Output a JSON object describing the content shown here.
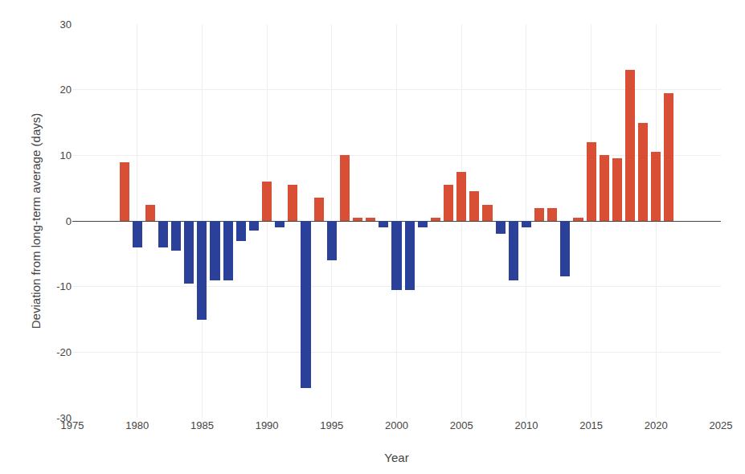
{
  "chart_data": {
    "type": "bar",
    "xlabel": "Year",
    "ylabel": "Deviation from long-term average (days)",
    "x": [
      1979,
      1980,
      1981,
      1982,
      1983,
      1984,
      1985,
      1986,
      1987,
      1988,
      1989,
      1990,
      1991,
      1992,
      1993,
      1994,
      1995,
      1996,
      1997,
      1998,
      1999,
      2000,
      2001,
      2002,
      2003,
      2004,
      2005,
      2006,
      2007,
      2008,
      2009,
      2010,
      2011,
      2012,
      2013,
      2014,
      2015,
      2016,
      2017,
      2018,
      2019,
      2020,
      2021
    ],
    "values": [
      9.0,
      -4.0,
      2.5,
      -4.0,
      -4.5,
      -9.5,
      -15.0,
      -9.0,
      -9.0,
      -3.0,
      -1.5,
      6.0,
      -1.0,
      5.5,
      -25.5,
      3.5,
      -6.0,
      10.0,
      0.5,
      0.5,
      -1.0,
      -10.5,
      -10.5,
      -1.0,
      0.5,
      5.5,
      7.5,
      4.5,
      2.5,
      -2.0,
      -9.0,
      -1.0,
      2.0,
      2.0,
      -8.5,
      0.5,
      12.0,
      10.0,
      9.5,
      23.0,
      15.0,
      10.5,
      19.5
    ],
    "colors": [
      "#d94f35",
      "#2b4099",
      "#d94f35",
      "#2b4099",
      "#2b4099",
      "#2b4099",
      "#2b4099",
      "#2b4099",
      "#2b4099",
      "#2b4099",
      "#2b4099",
      "#d94f35",
      "#2b4099",
      "#d94f35",
      "#2b4099",
      "#d94f35",
      "#2b4099",
      "#d94f35",
      "#d94f35",
      "#d94f35",
      "#2b4099",
      "#2b4099",
      "#2b4099",
      "#2b4099",
      "#d94f35",
      "#d94f35",
      "#d94f35",
      "#d94f35",
      "#d94f35",
      "#2b4099",
      "#2b4099",
      "#2b4099",
      "#d94f35",
      "#d94f35",
      "#2b4099",
      "#d94f35",
      "#d94f35",
      "#d94f35",
      "#d94f35",
      "#d94f35",
      "#d94f35",
      "#d94f35",
      "#d94f35"
    ],
    "xlim": [
      1975,
      2025
    ],
    "xticks": [
      1975,
      1980,
      1985,
      1990,
      1995,
      2000,
      2005,
      2010,
      2015,
      2020,
      2025
    ],
    "ylim": [
      -30,
      30
    ],
    "yticks": [
      -30,
      -20,
      -10,
      0,
      10,
      20,
      30
    ],
    "grid": true
  }
}
